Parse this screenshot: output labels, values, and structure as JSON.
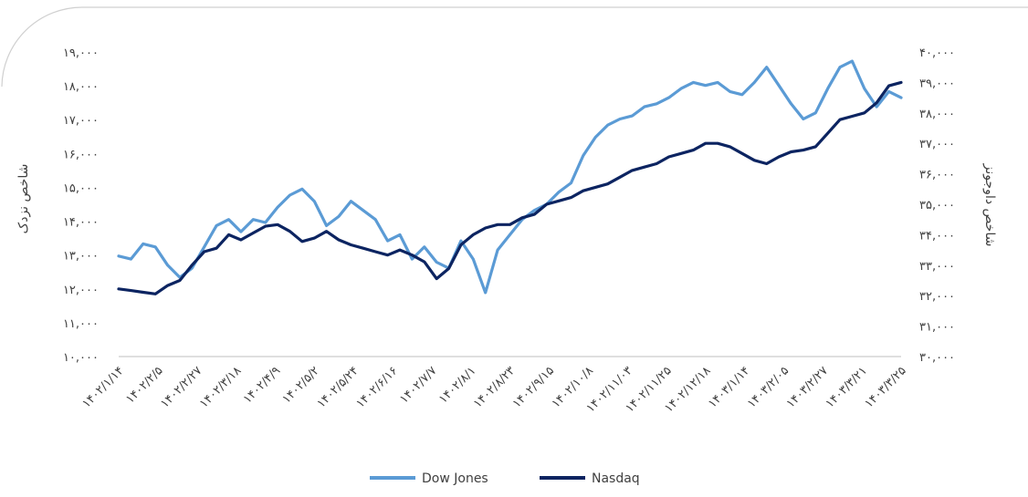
{
  "chart_data": {
    "type": "line",
    "title": "",
    "left_axis": {
      "label": "شاخص نزدک",
      "ticks": [
        "۱۰,۰۰۰",
        "۱۱,۰۰۰",
        "۱۲,۰۰۰",
        "۱۳,۰۰۰",
        "۱۴,۰۰۰",
        "۱۵,۰۰۰",
        "۱۶,۰۰۰",
        "۱۷,۰۰۰",
        "۱۸,۰۰۰",
        "۱۹,۰۰۰"
      ],
      "ylim": [
        10000,
        19000
      ]
    },
    "right_axis": {
      "label": "شاخص داوجونز",
      "ticks": [
        "۳۰,۰۰۰",
        "۳۱,۰۰۰",
        "۳۲,۰۰۰",
        "۳۳,۰۰۰",
        "۳۴,۰۰۰",
        "۳۵,۰۰۰",
        "۳۶,۰۰۰",
        "۳۷,۰۰۰",
        "۳۸,۰۰۰",
        "۳۹,۰۰۰",
        "۴۰,۰۰۰"
      ],
      "ylim": [
        30000,
        40000
      ]
    },
    "x_ticks": [
      "۱۴۰۲/۱/۱۴",
      "۱۴۰۲/۲/۵",
      "۱۴۰۲/۲/۲۷",
      "۱۴۰۲/۳/۱۸",
      "۱۴۰۲/۴/۹",
      "۱۴۰۲/۵/۲",
      "۱۴۰۲/۵/۲۴",
      "۱۴۰۲/۶/۱۶",
      "۱۴۰۲/۷/۷",
      "۱۴۰۲/۸/۱",
      "۱۴۰۲/۸/۲۳",
      "۱۴۰۲/۹/۱۵",
      "۱۴۰۲/۱۰/۸",
      "۱۴۰۲/۱۱/۰۳",
      "۱۴۰۲/۱۱/۲۵",
      "۱۴۰۲/۱۲/۱۸",
      "۱۴۰۳/۱/۱۴",
      "۱۴۰۳/۲/۰۵",
      "۱۴۰۳/۲/۲۷",
      "۱۴۰۳/۳/۲۱",
      "۱۴۰۳/۳/۲۵"
    ],
    "grid": false,
    "legend_position": "bottom",
    "series": [
      {
        "name": "Dow Jones",
        "axis": "right",
        "color": "#5b9bd5",
        "values": [
          33300,
          33200,
          33700,
          33600,
          33000,
          32600,
          32900,
          33600,
          34300,
          34500,
          34100,
          34500,
          34400,
          34900,
          35300,
          35500,
          35100,
          34300,
          34600,
          35100,
          34800,
          34500,
          33800,
          34000,
          33200,
          33600,
          33100,
          32900,
          33800,
          33200,
          32100,
          33500,
          34000,
          34500,
          34800,
          35000,
          35400,
          35700,
          36600,
          37200,
          37600,
          37800,
          37900,
          38200,
          38300,
          38500,
          38800,
          39000,
          38900,
          39000,
          38700,
          38600,
          39000,
          39500,
          38900,
          38300,
          37800,
          38000,
          38800,
          39500,
          39700,
          38800,
          38200,
          38700,
          38500
        ]
      },
      {
        "name": "Nasdaq",
        "axis": "left",
        "color": "#0c2461",
        "values": [
          12000,
          11950,
          11900,
          11850,
          12100,
          12250,
          12700,
          13100,
          13200,
          13600,
          13450,
          13650,
          13850,
          13900,
          13700,
          13400,
          13500,
          13700,
          13450,
          13300,
          13200,
          13100,
          13000,
          13150,
          13000,
          12800,
          12300,
          12600,
          13300,
          13600,
          13800,
          13900,
          13900,
          14100,
          14200,
          14500,
          14600,
          14700,
          14900,
          15000,
          15100,
          15300,
          15500,
          15600,
          15700,
          15900,
          16000,
          16100,
          16300,
          16300,
          16200,
          16000,
          15800,
          15700,
          15900,
          16050,
          16100,
          16200,
          16600,
          17000,
          17100,
          17200,
          17500,
          18000,
          18100
        ]
      }
    ]
  }
}
